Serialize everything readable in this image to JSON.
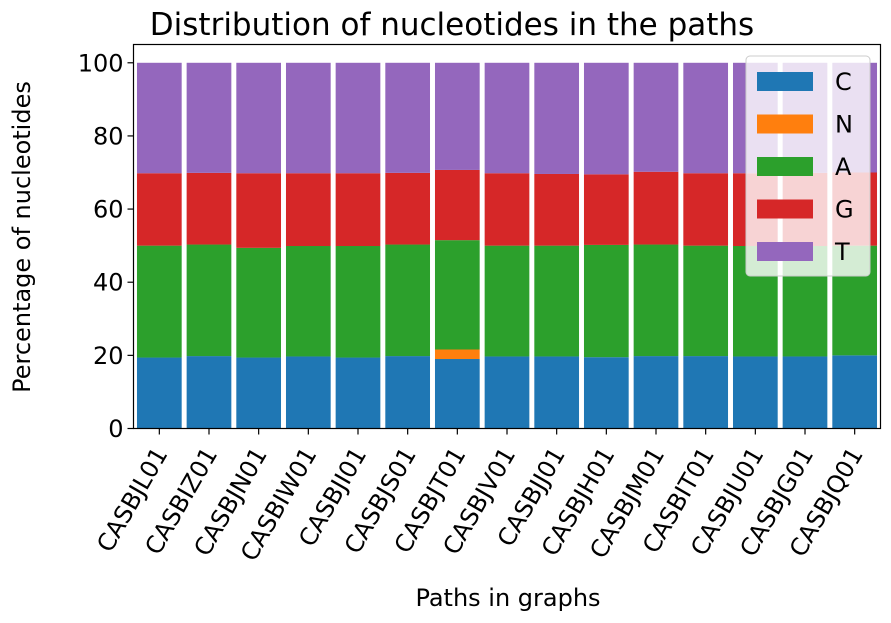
{
  "chart_data": {
    "type": "bar",
    "stacked": true,
    "title": "Distribution of nucleotides in the paths",
    "xlabel": "Paths in graphs",
    "ylabel": "Percentage of nucleotides",
    "ylim": [
      0,
      105
    ],
    "yticks": [
      0,
      20,
      40,
      60,
      80,
      100
    ],
    "grid": false,
    "legend_position": "top-right",
    "categories": [
      "CASBJL01",
      "CASBIZ01",
      "CASBJN01",
      "CASBIW01",
      "CASBJI01",
      "CASBJS01",
      "CASBJT01",
      "CASBJV01",
      "CASBJJ01",
      "CASBJH01",
      "CASBJM01",
      "CASBIT01",
      "CASBJU01",
      "CASBJG01",
      "CASBJQ01"
    ],
    "series": [
      {
        "name": "C",
        "color": "#1f77b4",
        "values": [
          19.4,
          19.8,
          19.4,
          19.7,
          19.4,
          19.8,
          19.0,
          19.7,
          19.7,
          19.5,
          19.8,
          19.8,
          19.7,
          19.7,
          20.0
        ]
      },
      {
        "name": "N",
        "color": "#ff7f0e",
        "values": [
          0,
          0,
          0,
          0,
          0,
          0,
          2.6,
          0,
          0,
          0,
          0,
          0,
          0,
          0,
          0
        ]
      },
      {
        "name": "A",
        "color": "#2ca02c",
        "values": [
          30.6,
          30.5,
          30.0,
          30.2,
          30.5,
          30.5,
          29.9,
          30.3,
          30.3,
          30.7,
          30.5,
          30.2,
          30.2,
          30.2,
          30.0
        ]
      },
      {
        "name": "G",
        "color": "#d62728",
        "values": [
          19.8,
          19.6,
          20.4,
          19.9,
          19.9,
          19.6,
          19.2,
          19.8,
          19.6,
          19.3,
          19.9,
          19.8,
          19.9,
          20.0,
          20.0
        ]
      },
      {
        "name": "T",
        "color": "#9467bd",
        "values": [
          30.2,
          30.1,
          30.2,
          30.2,
          30.2,
          30.1,
          29.3,
          30.2,
          30.4,
          30.5,
          29.8,
          30.2,
          30.2,
          30.1,
          30.0
        ]
      }
    ]
  }
}
